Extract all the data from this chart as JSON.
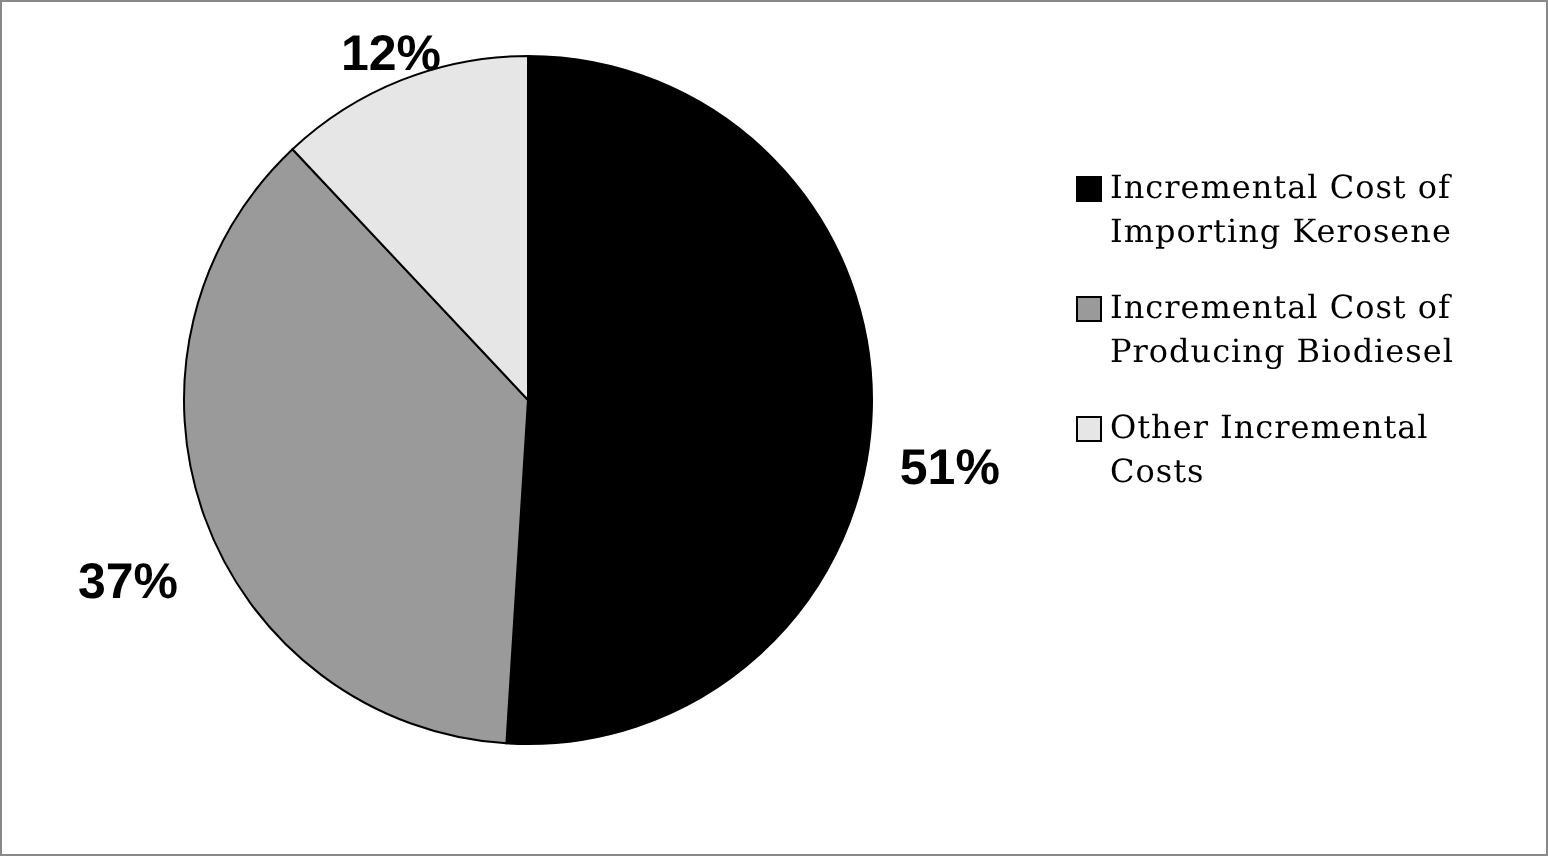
{
  "chart_data": {
    "type": "pie",
    "categories": [
      "Incremental Cost of Importing Kerosene",
      "Incremental Cost of Producing Biodiesel",
      "Other Incremental Costs"
    ],
    "values": [
      51,
      37,
      12
    ],
    "colors": [
      "#000000",
      "#9a9a9a",
      "#e6e6e6"
    ],
    "value_labels": [
      "51%",
      "37%",
      "12%"
    ],
    "legend": "right"
  }
}
